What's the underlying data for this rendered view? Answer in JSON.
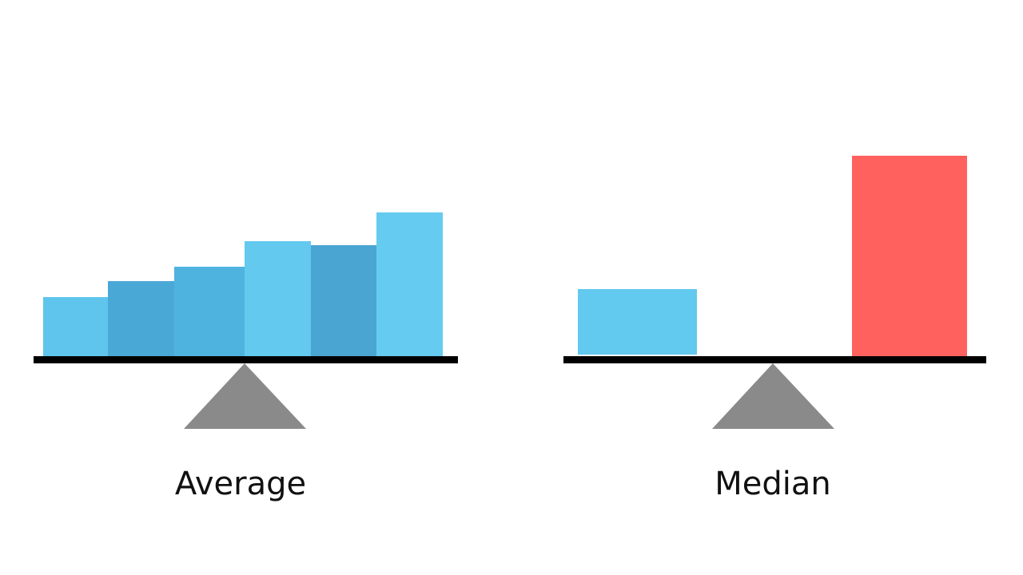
{
  "left": {
    "label": "Average"
  },
  "right": {
    "label": "Median"
  }
}
